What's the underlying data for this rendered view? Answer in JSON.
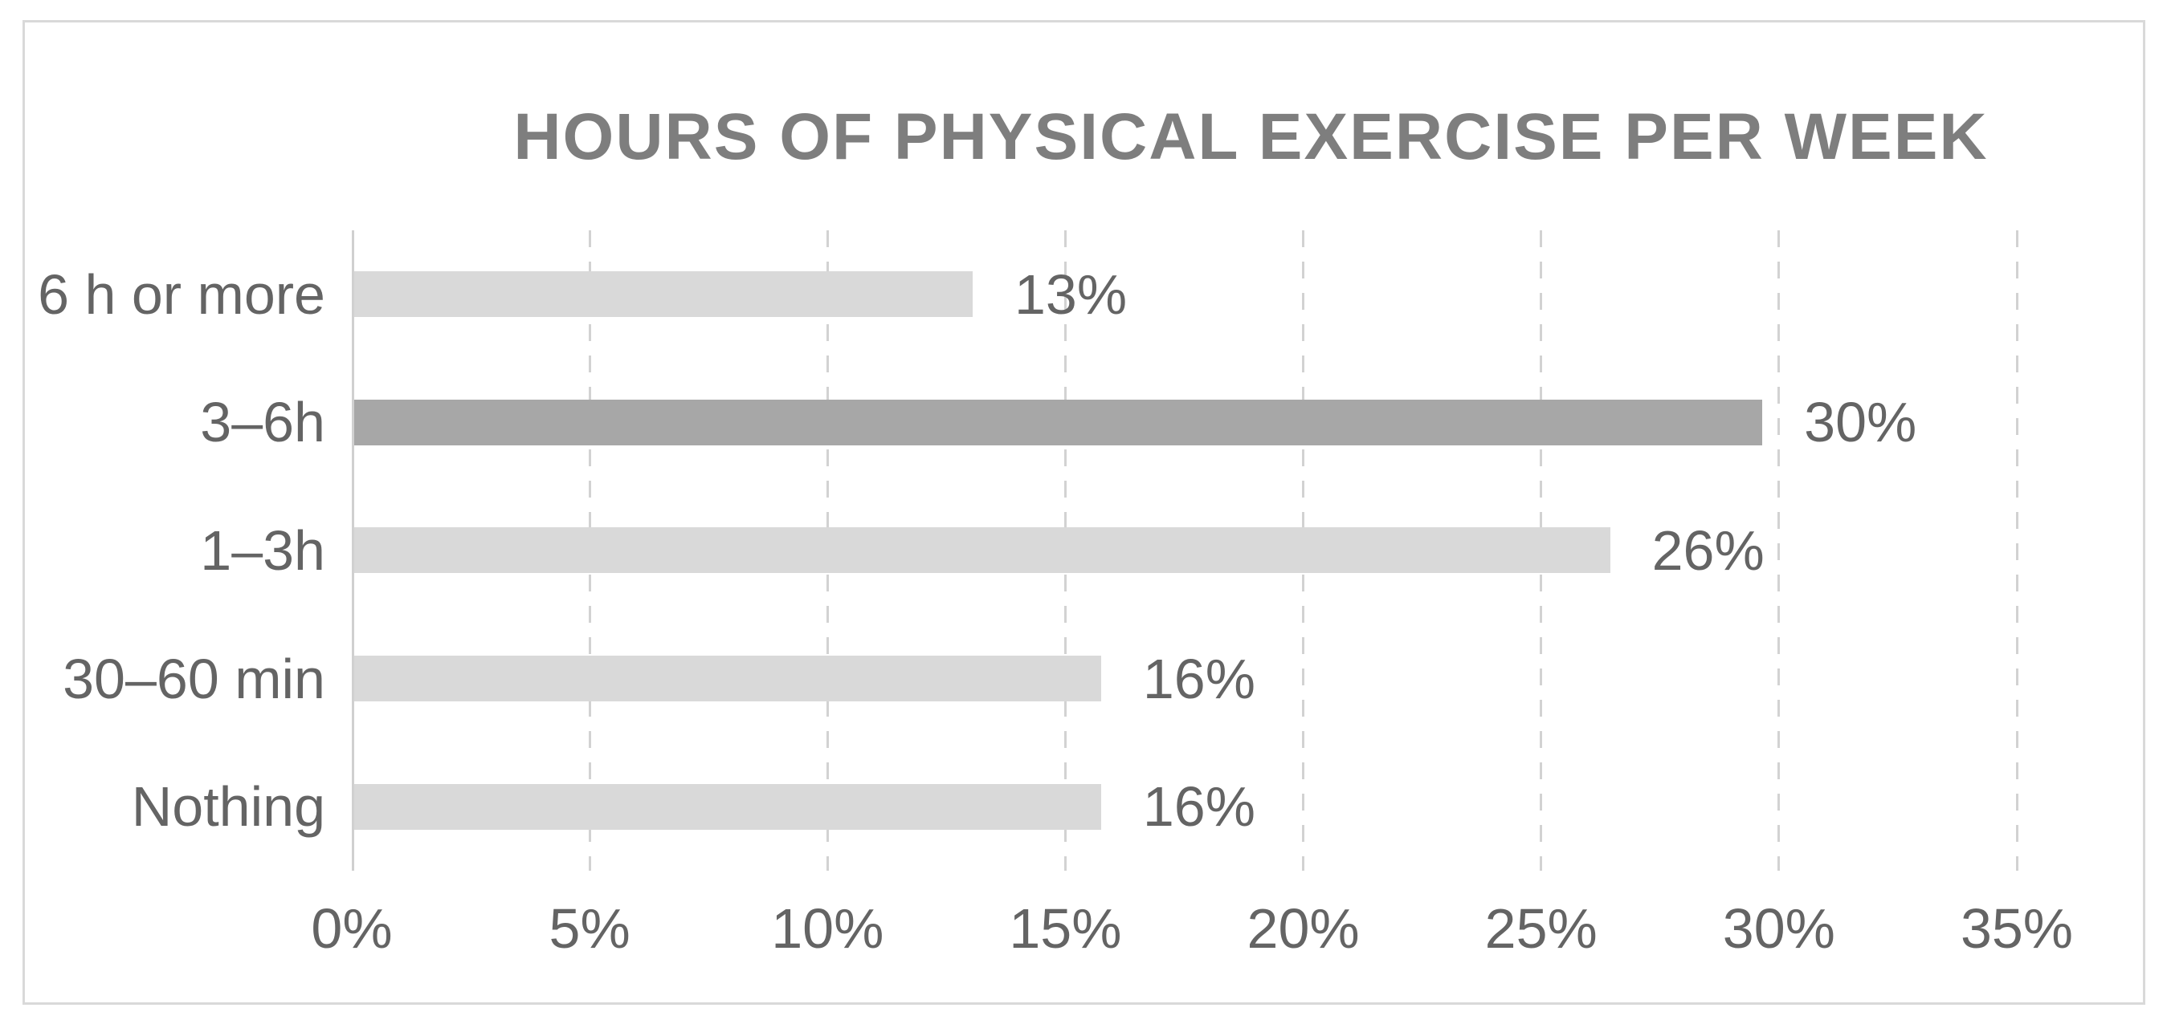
{
  "chart_data": {
    "type": "bar",
    "orientation": "horizontal",
    "title": "HOURS OF PHYSICAL EXERCISE PER WEEK",
    "categories": [
      "6 h or more",
      "3–6h",
      "1–3h",
      "30–60 min",
      "Nothing"
    ],
    "values": [
      13,
      30,
      26,
      16,
      16
    ],
    "value_labels": [
      "13%",
      "30%",
      "26%",
      "16%",
      "16%"
    ],
    "plotted_values": [
      13.0,
      29.6,
      26.4,
      15.7,
      15.7
    ],
    "highlight_index": 1,
    "highlighted_category": "3–6h",
    "x_tick_labels": [
      "0%",
      "5%",
      "10%",
      "15%",
      "20%",
      "25%",
      "30%",
      "35%"
    ],
    "xlim": [
      0,
      35
    ],
    "x_tick_step": 5,
    "xlabel": "",
    "ylabel": "",
    "legend": "none",
    "gridlines": "vertical-dashed",
    "colors": {
      "bar_default": "#d9d9d9",
      "bar_highlight": "#a7a7a7",
      "title_text": "#7e7e7e",
      "label_text": "#646464",
      "gridline": "#d2d2d2",
      "axis_line": "#d0d0d0",
      "frame_border": "#d9d9d9",
      "background": "#ffffff"
    }
  }
}
